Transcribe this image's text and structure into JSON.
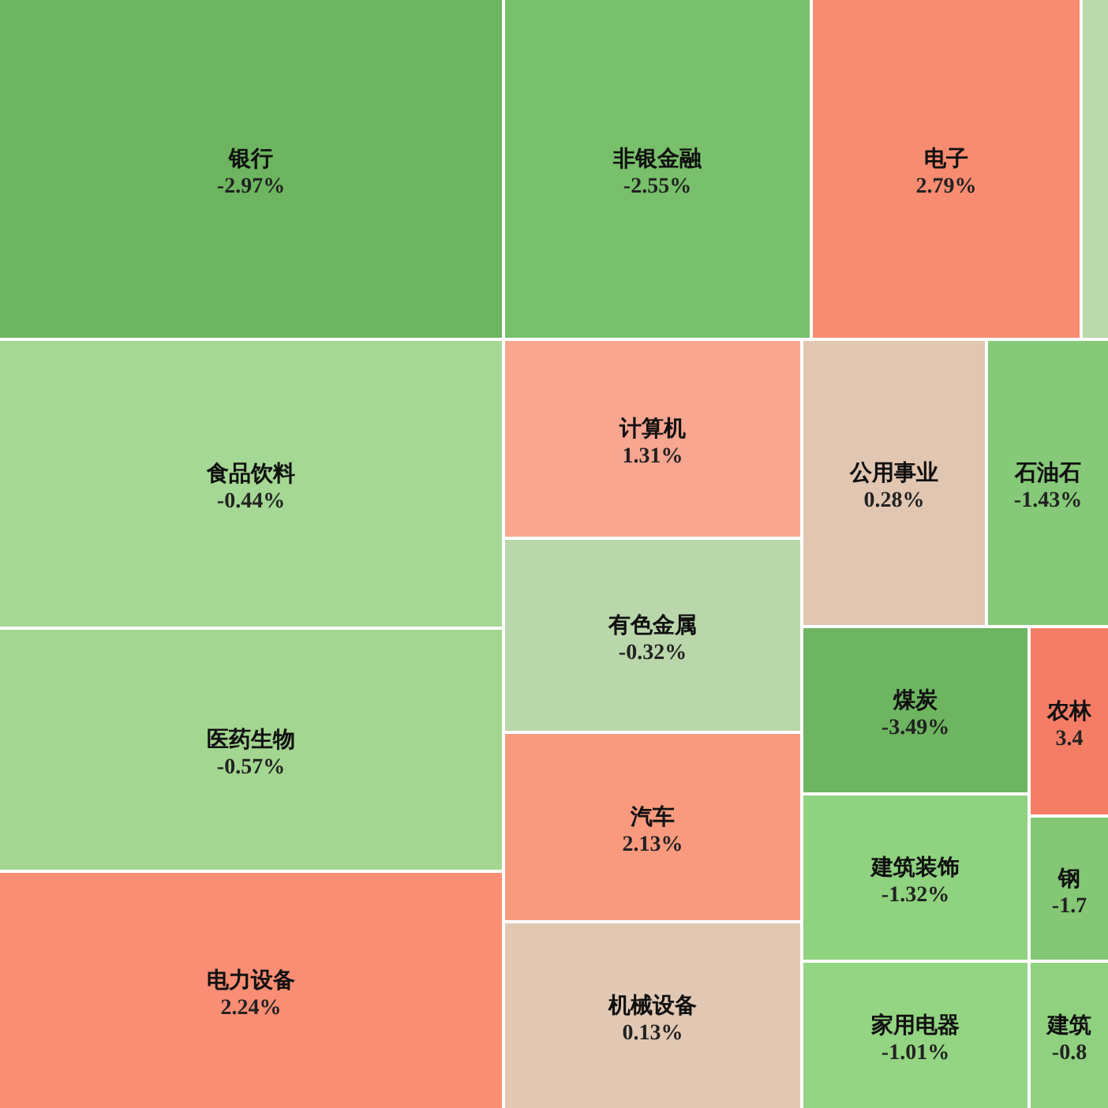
{
  "chart_data": {
    "type": "other",
    "categories": [
      "银行",
      "非银金融",
      "电子",
      null,
      "食品饮料",
      "医药生物",
      "电力设备",
      "计算机",
      "有色金属",
      "汽车",
      "机械设备",
      "公用事业",
      "石油石",
      "煤炭",
      "建筑装饰",
      "家用电器",
      "农林",
      "钢",
      "建筑"
    ],
    "values": [
      -2.97,
      -2.55,
      2.79,
      null,
      -0.44,
      -0.57,
      2.24,
      1.31,
      -0.32,
      2.13,
      0.13,
      0.28,
      -1.43,
      -3.49,
      -1.32,
      -1.01,
      null,
      null,
      null
    ],
    "value_labels": [
      "-2.97%",
      "-2.55%",
      "2.79%",
      null,
      "-0.44%",
      "-0.57%",
      "2.24%",
      "1.31%",
      "-0.32%",
      "2.13%",
      "0.13%",
      "0.28%",
      "-1.43%",
      "-3.49%",
      "-1.32%",
      "-1.01%",
      "3.4",
      "-1.7",
      "-0.8"
    ],
    "colors": [
      "#6db560",
      "#78c06b",
      "#f88c70",
      "#bcd8ad",
      "#a5d894",
      "#a3d690",
      "#f98e74",
      "#f8a690",
      "#bad7ab",
      "#f99a7e",
      "#e2c8b3",
      "#e1c6b2",
      "#86c978",
      "#6db560",
      "#8fd27f",
      "#93d582",
      "#f57d66",
      "#84c775",
      "#90d17f"
    ]
  }
}
